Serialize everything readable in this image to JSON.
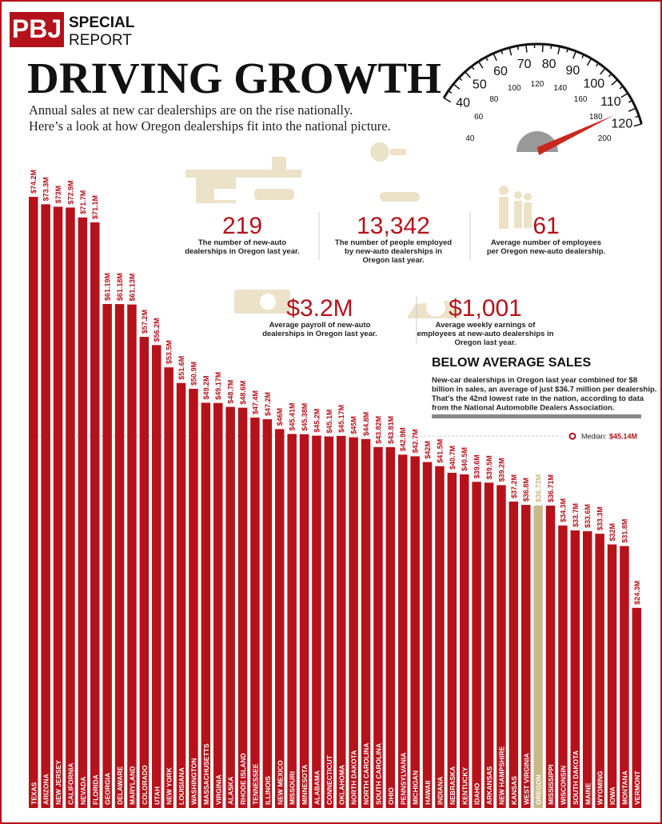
{
  "header": {
    "logo": "PBJ",
    "section_1": "SPECIAL",
    "section_2": "REPORT",
    "title": "DRIVING GROWTH",
    "subtitle_lines": [
      "Annual sales at new car dealerships are on the rise nationally.",
      "Here’s a look at how Oregon dealerships fit into the national picture."
    ]
  },
  "speedometer": {
    "outer_labels": [
      40,
      50,
      60,
      70,
      80,
      90,
      100,
      110,
      120
    ],
    "inner_labels": [
      40,
      60,
      80,
      100,
      120,
      140,
      160,
      180,
      200
    ]
  },
  "stats": [
    {
      "value": "219",
      "description_lines": [
        "The number of new-auto",
        "dealerships in Oregon last year."
      ]
    },
    {
      "value": "13,342",
      "description_lines": [
        "The number of people employed",
        "by new-auto dealerships in",
        "Oregon last year."
      ]
    },
    {
      "value": "61",
      "description_lines": [
        "Average number of employees",
        "per Oregon new-auto dealership."
      ]
    },
    {
      "value": "$3.2M",
      "description_lines": [
        "Average payroll of new-auto",
        "dealerships in Oregon last year."
      ]
    },
    {
      "value": "$1,001",
      "description_lines": [
        "Average weekly earnings of",
        "employees at new-auto dealerships in",
        "Oregon last year."
      ]
    }
  ],
  "notes": {
    "title": "BELOW AVERAGE SALES",
    "lines": [
      "New-car dealerships in Oregon last year combined for $8",
      "billion in sales, an average of just $36.7 million per dealership.",
      "That’s the 42nd lowest rate in the nation, according to data",
      "from the National Automobile Dealers Association."
    ]
  },
  "chart_data": {
    "type": "bar",
    "categories": [
      "TEXAS",
      "ARIZONA",
      "NEW JERSEY",
      "CALIFORNIA",
      "NEVADA",
      "FLORIDA",
      "GEORGIA",
      "DELAWARE",
      "MARYLAND",
      "COLORADO",
      "UTAH",
      "NEW YORK",
      "LOUISIANA",
      "WASHINGTON",
      "MASSACHUSETTS",
      "VIRGINIA",
      "ALASKA",
      "RHODE ISLAND",
      "TENNESSEE",
      "ILLINOIS",
      "NEW MEXICO",
      "MISSOURI",
      "MINNESOTA",
      "ALABAMA",
      "CONNECTICUT",
      "OKLAHOMA",
      "NORTH DAKOTA",
      "NORTH CAROLINA",
      "SOUTH CAROLINA",
      "OHIO",
      "PENNSYLVANIA",
      "MICHIGAN",
      "HAWAII",
      "INDIANA",
      "NEBRASKA",
      "KENTUCKY",
      "IDAHO",
      "ARKANSAS",
      "NEW HAMPSHIRE",
      "KANSAS",
      "WEST VIRGINIA",
      "OREGON",
      "MISSISSIPPI",
      "WISCONSIN",
      "SOUTH DAKOTA",
      "MAINE",
      "WYOMING",
      "IOWA",
      "MONTANA",
      "VERMONT"
    ],
    "values": [
      74.2,
      73.3,
      73,
      72.9,
      71.7,
      71.1,
      61.19,
      61.18,
      61.13,
      57.2,
      56.2,
      53.5,
      51.6,
      50.9,
      49.2,
      49.17,
      48.7,
      48.6,
      47.4,
      47.2,
      46,
      45.41,
      45.38,
      45.2,
      45.1,
      45.17,
      45,
      44.8,
      43.82,
      43.81,
      42.9,
      42.7,
      42,
      41.5,
      40.7,
      40.5,
      39.6,
      39.5,
      39.2,
      37.2,
      36.8,
      36.72,
      36.71,
      34.3,
      33.7,
      33.6,
      33.3,
      32,
      31.8,
      24.3
    ],
    "value_labels": [
      "$74.2M",
      "$73.3M",
      "$73M",
      "$72.9M",
      "$71.7M",
      "$71.1M",
      "$61.19M",
      "$61.18M",
      "$61.13M",
      "$57.2M",
      "$56.2M",
      "$53.5M",
      "$51.6M",
      "$50.9M",
      "$49.2M",
      "$49.17M",
      "$48.7M",
      "$48.6M",
      "$47.4M",
      "$47.2M",
      "$46M",
      "$45.41M",
      "$45.38M",
      "$45.2M",
      "$45.1M",
      "$45.17M",
      "$45M",
      "$44.8M",
      "$43.82M",
      "$43.81M",
      "$42.9M",
      "$42.7M",
      "$42M",
      "$41.5M",
      "$40.7M",
      "$40.5M",
      "$39.6M",
      "$39.5M",
      "$39.2M",
      "$37.2M",
      "$36.8M",
      "$36.72M",
      "$36.71M",
      "$34.3M",
      "$33.7M",
      "$33.6M",
      "$33.3M",
      "$32M",
      "$31.8M",
      "$24.3M"
    ],
    "colors": [
      "#b5121b",
      "#b5121b",
      "#b5121b",
      "#b5121b",
      "#b5121b",
      "#b5121b",
      "#b5121b",
      "#b5121b",
      "#b5121b",
      "#b5121b",
      "#b5121b",
      "#b5121b",
      "#b5121b",
      "#b5121b",
      "#b5121b",
      "#b5121b",
      "#b5121b",
      "#b5121b",
      "#b5121b",
      "#b5121b",
      "#b5121b",
      "#b5121b",
      "#b5121b",
      "#b5121b",
      "#b5121b",
      "#b5121b",
      "#b5121b",
      "#b5121b",
      "#b5121b",
      "#b5121b",
      "#b5121b",
      "#b5121b",
      "#b5121b",
      "#b5121b",
      "#b5121b",
      "#b5121b",
      "#b5121b",
      "#b5121b",
      "#b5121b",
      "#b5121b",
      "#b5121b",
      "#c8b98a",
      "#b5121b",
      "#b5121b",
      "#b5121b",
      "#b5121b",
      "#b5121b",
      "#b5121b",
      "#b5121b",
      "#b5121b"
    ],
    "ylim": [
      0,
      98
    ],
    "median": 45.14,
    "median_caption": "Median:",
    "median_label": "$45.14M"
  }
}
